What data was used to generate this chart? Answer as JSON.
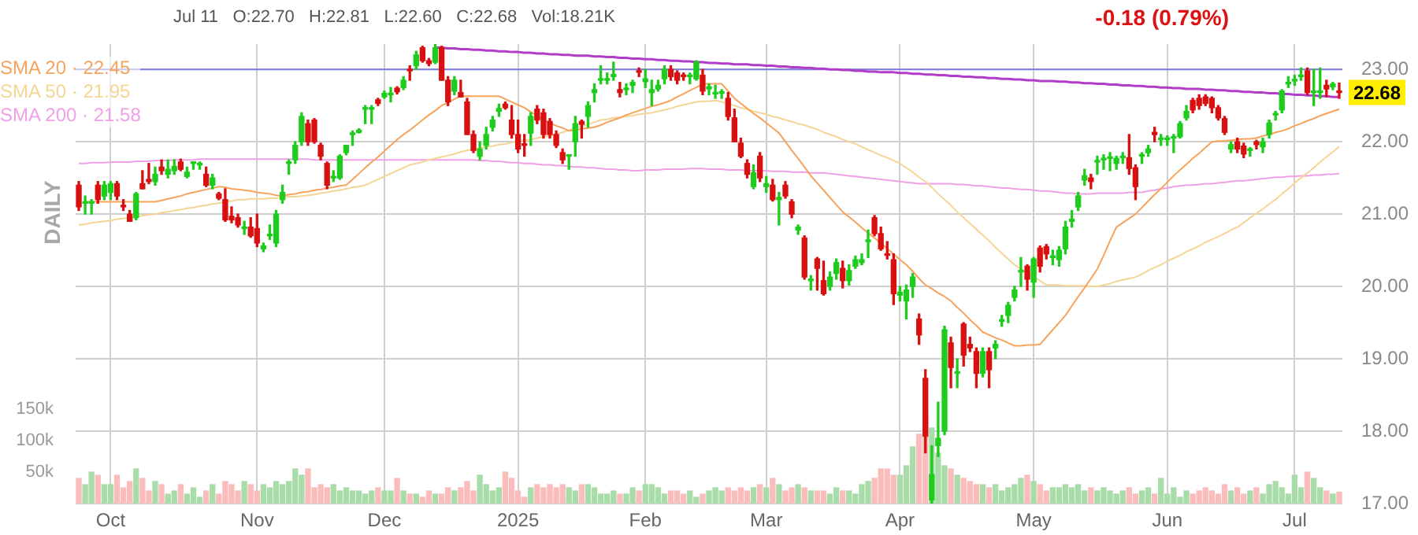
{
  "chart_data": {
    "type": "candlestick",
    "subtitle": "Jul 11   O:22.70   H:22.81   L:22.60   C:22.68   Vol:18.21K",
    "annotations": [
      "-0.18 (0.79%)",
      "22.68",
      "DAILY"
    ],
    "categories": [
      null,
      null,
      null,
      null,
      null,
      "Oct",
      null,
      null,
      null,
      null,
      null,
      null,
      null,
      null,
      null,
      null,
      null,
      null,
      null,
      null,
      null,
      null,
      null,
      null,
      null,
      null,
      null,
      null,
      "Nov",
      null,
      null,
      null,
      null,
      null,
      null,
      null,
      null,
      null,
      null,
      null,
      null,
      null,
      null,
      null,
      null,
      null,
      null,
      null,
      "Dec",
      null,
      null,
      null,
      null,
      null,
      null,
      null,
      null,
      null,
      null,
      null,
      null,
      null,
      null,
      null,
      null,
      null,
      null,
      null,
      null,
      "2025",
      null,
      null,
      null,
      null,
      null,
      null,
      null,
      null,
      null,
      null,
      null,
      null,
      null,
      null,
      null,
      null,
      null,
      null,
      null,
      "Feb",
      null,
      null,
      null,
      null,
      null,
      null,
      null,
      null,
      null,
      null,
      null,
      null,
      null,
      null,
      null,
      null,
      null,
      null,
      "Mar",
      null,
      null,
      null,
      null,
      null,
      null,
      null,
      null,
      null,
      null,
      null,
      null,
      null,
      null,
      null,
      null,
      null,
      null,
      null,
      null,
      "Apr",
      null,
      null,
      null,
      null,
      null,
      null,
      null,
      null,
      null,
      null,
      null,
      null,
      null,
      null,
      null,
      null,
      null,
      null,
      null,
      null,
      "May",
      null,
      null,
      null,
      null,
      null,
      null,
      null,
      null,
      null,
      null,
      null,
      null,
      null,
      null,
      null,
      null,
      null,
      null,
      null,
      null,
      "Jun",
      null,
      null,
      null,
      null,
      null,
      null,
      null,
      null,
      null,
      null,
      null,
      null,
      null,
      null,
      null,
      null,
      null,
      null,
      null,
      "Jul",
      null,
      null,
      null,
      null,
      null,
      null,
      null
    ],
    "ohlc": [
      [
        21.4,
        21.45,
        21.05,
        21.1
      ],
      [
        21.15,
        21.25,
        21.0,
        21.15
      ],
      [
        21.15,
        21.2,
        21.0,
        21.15
      ],
      [
        21.4,
        21.45,
        21.15,
        21.2
      ],
      [
        21.25,
        21.45,
        21.2,
        21.4
      ],
      [
        21.3,
        21.45,
        21.2,
        21.42
      ],
      [
        21.42,
        21.45,
        21.2,
        21.25
      ],
      [
        21.12,
        21.2,
        21.05,
        21.1
      ],
      [
        21.0,
        21.05,
        20.9,
        20.9
      ],
      [
        20.95,
        21.3,
        20.92,
        21.28
      ],
      [
        21.42,
        21.6,
        21.35,
        21.35
      ],
      [
        21.48,
        21.7,
        21.42,
        21.45
      ],
      [
        21.45,
        21.65,
        21.4,
        21.55
      ],
      [
        21.65,
        21.75,
        21.55,
        21.6
      ],
      [
        21.55,
        21.75,
        21.5,
        21.62
      ],
      [
        21.6,
        21.75,
        21.55,
        21.66
      ],
      [
        21.72,
        21.76,
        21.6,
        21.62
      ],
      [
        21.52,
        21.65,
        21.5,
        21.58
      ],
      [
        21.7,
        21.72,
        21.62,
        21.7
      ],
      [
        21.68,
        21.72,
        21.62,
        21.68
      ],
      [
        21.55,
        21.65,
        21.38,
        21.4
      ],
      [
        21.4,
        21.55,
        21.35,
        21.5
      ],
      [
        21.28,
        21.3,
        21.2,
        21.22
      ],
      [
        21.2,
        21.35,
        20.9,
        20.92
      ],
      [
        20.97,
        21.1,
        20.88,
        20.92
      ],
      [
        20.95,
        21.0,
        20.82,
        20.85
      ],
      [
        20.8,
        20.9,
        20.72,
        20.8
      ],
      [
        20.82,
        20.95,
        20.68,
        20.7
      ],
      [
        20.8,
        21.0,
        20.55,
        20.6
      ],
      [
        20.52,
        20.6,
        20.48,
        20.56
      ],
      [
        20.7,
        20.85,
        20.65,
        20.7
      ],
      [
        20.6,
        21.05,
        20.55,
        21.0
      ],
      [
        21.2,
        21.4,
        21.15,
        21.3
      ],
      [
        21.7,
        21.75,
        21.55,
        21.7
      ],
      [
        21.75,
        22.0,
        21.7,
        21.95
      ],
      [
        22.0,
        22.4,
        21.95,
        22.35
      ],
      [
        22.25,
        22.3,
        21.95,
        22.0
      ],
      [
        22.3,
        22.32,
        21.98,
        22.0
      ],
      [
        21.95,
        21.98,
        21.75,
        21.8
      ],
      [
        21.7,
        21.72,
        21.35,
        21.4
      ],
      [
        21.5,
        21.6,
        21.45,
        21.5
      ],
      [
        21.5,
        21.82,
        21.48,
        21.8
      ],
      [
        21.85,
        21.95,
        21.82,
        21.95
      ],
      [
        22.1,
        22.15,
        21.95,
        22.1
      ],
      [
        22.13,
        22.18,
        22.12,
        22.16
      ],
      [
        22.45,
        22.5,
        22.25,
        22.45
      ],
      [
        22.45,
        22.5,
        22.25,
        22.45
      ],
      [
        22.58,
        22.6,
        22.5,
        22.53
      ],
      [
        22.62,
        22.7,
        22.6,
        22.67
      ],
      [
        22.65,
        22.75,
        22.55,
        22.65
      ],
      [
        22.74,
        22.76,
        22.66,
        22.69
      ],
      [
        22.75,
        22.9,
        22.72,
        22.85
      ],
      [
        23.0,
        23.05,
        22.85,
        22.98
      ],
      [
        23.05,
        23.25,
        23.0,
        23.2
      ],
      [
        23.3,
        23.32,
        23.1,
        23.12
      ],
      [
        23.12,
        23.15,
        23.05,
        23.08
      ],
      [
        23.1,
        23.35,
        23.08,
        23.3
      ],
      [
        23.3,
        23.32,
        22.85,
        22.85
      ],
      [
        22.85,
        22.9,
        22.5,
        22.55
      ],
      [
        22.7,
        22.9,
        22.65,
        22.85
      ],
      [
        22.68,
        22.85,
        22.62,
        22.62
      ],
      [
        22.55,
        22.6,
        22.1,
        22.1
      ],
      [
        22.1,
        22.15,
        21.85,
        21.88
      ],
      [
        21.8,
        22.0,
        21.75,
        21.9
      ],
      [
        21.95,
        22.2,
        21.9,
        22.1
      ],
      [
        22.2,
        22.35,
        22.15,
        22.3
      ],
      [
        22.42,
        22.52,
        22.35,
        22.46
      ],
      [
        22.52,
        22.55,
        22.45,
        22.47
      ],
      [
        22.3,
        22.5,
        22.05,
        22.1
      ],
      [
        22.1,
        22.3,
        21.85,
        21.9
      ],
      [
        21.97,
        22.1,
        21.8,
        21.95
      ],
      [
        22.12,
        22.4,
        21.95,
        22.35
      ],
      [
        22.45,
        22.5,
        22.25,
        22.3
      ],
      [
        22.4,
        22.45,
        22.05,
        22.1
      ],
      [
        22.28,
        22.32,
        22.05,
        22.1
      ],
      [
        22.1,
        22.15,
        21.92,
        21.95
      ],
      [
        21.85,
        21.9,
        21.7,
        21.75
      ],
      [
        21.8,
        21.82,
        21.62,
        21.8
      ],
      [
        22.0,
        22.35,
        21.8,
        22.25
      ],
      [
        22.28,
        22.3,
        22.05,
        22.24
      ],
      [
        22.35,
        22.55,
        22.2,
        22.5
      ],
      [
        22.68,
        22.8,
        22.55,
        22.72
      ],
      [
        22.85,
        23.05,
        22.8,
        22.85
      ],
      [
        22.85,
        22.95,
        22.8,
        22.85
      ],
      [
        22.9,
        23.1,
        22.85,
        22.93
      ],
      [
        22.72,
        22.82,
        22.62,
        22.68
      ],
      [
        22.72,
        22.8,
        22.65,
        22.72
      ],
      [
        22.78,
        22.85,
        22.68,
        22.82
      ],
      [
        22.98,
        23.02,
        22.9,
        22.96
      ],
      [
        22.83,
        23.0,
        22.75,
        22.87
      ],
      [
        22.68,
        22.85,
        22.5,
        22.72
      ],
      [
        22.73,
        22.85,
        22.7,
        22.78
      ],
      [
        22.87,
        23.05,
        22.8,
        23.0
      ],
      [
        23.0,
        23.05,
        22.85,
        22.9
      ],
      [
        22.95,
        22.98,
        22.8,
        22.85
      ],
      [
        22.92,
        22.95,
        22.85,
        22.9
      ],
      [
        22.9,
        22.95,
        22.8,
        22.9
      ],
      [
        22.87,
        23.12,
        22.85,
        23.1
      ],
      [
        22.92,
        23.0,
        22.65,
        22.7
      ],
      [
        22.73,
        22.8,
        22.65,
        22.76
      ],
      [
        22.66,
        22.78,
        22.6,
        22.66
      ],
      [
        22.67,
        22.72,
        22.6,
        22.67
      ],
      [
        22.6,
        22.68,
        22.3,
        22.35
      ],
      [
        22.33,
        22.45,
        22.0,
        22.0
      ],
      [
        21.98,
        22.05,
        21.78,
        21.8
      ],
      [
        21.7,
        21.75,
        21.5,
        21.55
      ],
      [
        21.38,
        21.68,
        21.35,
        21.57
      ],
      [
        21.8,
        21.85,
        21.45,
        21.5
      ],
      [
        21.38,
        21.52,
        21.3,
        21.42
      ],
      [
        21.4,
        21.48,
        21.18,
        21.2
      ],
      [
        21.2,
        21.3,
        20.85,
        21.23
      ],
      [
        21.4,
        21.45,
        21.22,
        21.25
      ],
      [
        21.17,
        21.2,
        20.95,
        21.0
      ],
      [
        20.78,
        20.85,
        20.72,
        20.82
      ],
      [
        20.67,
        20.7,
        20.1,
        20.13
      ],
      [
        20.08,
        20.15,
        19.95,
        20.1
      ],
      [
        20.38,
        20.4,
        19.95,
        20.25
      ],
      [
        20.08,
        20.35,
        19.88,
        19.9
      ],
      [
        20.0,
        20.2,
        19.95,
        20.13
      ],
      [
        20.18,
        20.38,
        20.1,
        20.33
      ],
      [
        20.25,
        20.35,
        19.98,
        20.08
      ],
      [
        20.08,
        20.3,
        20.02,
        20.22
      ],
      [
        20.28,
        20.42,
        20.25,
        20.37
      ],
      [
        20.33,
        20.45,
        20.3,
        20.37
      ],
      [
        20.62,
        20.78,
        20.4,
        20.62
      ],
      [
        20.95,
        20.98,
        20.7,
        20.73
      ],
      [
        20.73,
        20.82,
        20.5,
        20.52
      ],
      [
        20.45,
        20.62,
        20.38,
        20.43
      ],
      [
        20.37,
        20.45,
        19.75,
        19.9
      ],
      [
        19.88,
        20.0,
        19.8,
        19.92
      ],
      [
        19.8,
        20.02,
        19.55,
        19.95
      ],
      [
        20.0,
        20.18,
        19.85,
        20.13
      ],
      [
        19.55,
        19.62,
        19.2,
        19.33
      ],
      [
        18.73,
        18.85,
        17.7,
        17.93
      ],
      [
        17.05,
        17.8,
        17.0,
        17.4
      ],
      [
        17.8,
        18.4,
        17.65,
        17.9
      ],
      [
        18.0,
        19.45,
        17.95,
        19.4
      ],
      [
        19.22,
        19.3,
        18.6,
        18.88
      ],
      [
        18.8,
        19.0,
        18.6,
        18.8
      ],
      [
        19.48,
        19.5,
        18.9,
        19.05
      ],
      [
        19.2,
        19.3,
        19.1,
        19.15
      ],
      [
        19.1,
        19.15,
        18.6,
        18.8
      ],
      [
        18.8,
        19.15,
        18.75,
        19.1
      ],
      [
        19.1,
        19.15,
        18.6,
        18.85
      ],
      [
        19.15,
        19.25,
        19.0,
        19.2
      ],
      [
        19.52,
        19.6,
        19.45,
        19.52
      ],
      [
        19.6,
        19.78,
        19.5,
        19.74
      ],
      [
        19.85,
        20.0,
        19.8,
        19.95
      ],
      [
        20.2,
        20.4,
        20.0,
        20.2
      ],
      [
        20.28,
        20.3,
        19.95,
        20.1
      ],
      [
        20.06,
        20.4,
        19.85,
        20.38
      ],
      [
        20.53,
        20.56,
        20.2,
        20.28
      ],
      [
        20.55,
        20.58,
        20.38,
        20.45
      ],
      [
        20.4,
        20.5,
        20.3,
        20.4
      ],
      [
        20.37,
        20.55,
        20.28,
        20.5
      ],
      [
        20.52,
        20.9,
        20.45,
        20.82
      ],
      [
        20.9,
        21.05,
        20.82,
        20.93
      ],
      [
        21.1,
        21.3,
        21.05,
        21.25
      ],
      [
        21.47,
        21.62,
        21.4,
        21.53
      ],
      [
        21.5,
        21.55,
        21.35,
        21.45
      ],
      [
        21.72,
        21.8,
        21.55,
        21.72
      ],
      [
        21.75,
        21.82,
        21.62,
        21.75
      ],
      [
        21.77,
        21.85,
        21.6,
        21.77
      ],
      [
        21.7,
        21.8,
        21.62,
        21.77
      ],
      [
        21.78,
        21.85,
        21.7,
        21.78
      ],
      [
        21.78,
        22.1,
        21.55,
        21.63
      ],
      [
        21.64,
        21.68,
        21.2,
        21.38
      ],
      [
        21.8,
        21.85,
        21.7,
        21.8
      ],
      [
        21.85,
        21.95,
        21.8,
        21.9
      ],
      [
        22.13,
        22.2,
        22.0,
        22.1
      ],
      [
        22.03,
        22.1,
        21.95,
        22.03
      ],
      [
        22.03,
        22.08,
        21.95,
        22.03
      ],
      [
        22.05,
        22.1,
        21.85,
        22.05
      ],
      [
        22.07,
        22.28,
        22.05,
        22.25
      ],
      [
        22.33,
        22.5,
        22.3,
        22.42
      ],
      [
        22.57,
        22.6,
        22.4,
        22.44
      ],
      [
        22.6,
        22.65,
        22.45,
        22.5
      ],
      [
        22.62,
        22.65,
        22.5,
        22.53
      ],
      [
        22.6,
        22.62,
        22.4,
        22.47
      ],
      [
        22.47,
        22.5,
        22.3,
        22.33
      ],
      [
        22.32,
        22.35,
        22.1,
        22.13
      ],
      [
        21.9,
        22.0,
        21.85,
        21.96
      ],
      [
        22.0,
        22.05,
        21.85,
        21.9
      ],
      [
        21.94,
        21.98,
        21.78,
        21.83
      ],
      [
        21.88,
        21.92,
        21.8,
        21.88
      ],
      [
        22.0,
        22.02,
        21.9,
        21.96
      ],
      [
        21.93,
        22.05,
        21.85,
        22.0
      ],
      [
        22.1,
        22.3,
        22.05,
        22.26
      ],
      [
        22.37,
        22.42,
        22.3,
        22.37
      ],
      [
        22.44,
        22.72,
        22.4,
        22.7
      ],
      [
        22.8,
        22.9,
        22.75,
        22.8
      ],
      [
        22.84,
        22.92,
        22.78,
        22.84
      ],
      [
        22.9,
        23.02,
        22.85,
        22.9
      ],
      [
        22.98,
        23.02,
        22.65,
        22.68
      ],
      [
        22.68,
        23.0,
        22.5,
        22.68
      ],
      [
        22.68,
        23.02,
        22.6,
        22.68
      ],
      [
        22.78,
        22.85,
        22.62,
        22.73
      ],
      [
        22.76,
        22.82,
        22.72,
        22.8
      ],
      [
        22.7,
        22.81,
        22.6,
        22.68
      ]
    ],
    "series": [
      {
        "type": "bar",
        "axis": "y2",
        "values": [
          40000,
          30000,
          50000,
          45000,
          30000,
          30000,
          45000,
          25000,
          35000,
          55000,
          40000,
          20000,
          35000,
          30000,
          15000,
          20000,
          30000,
          15000,
          25000,
          10000,
          20000,
          30000,
          15000,
          35000,
          30000,
          20000,
          35000,
          30000,
          20000,
          30000,
          25000,
          35000,
          30000,
          35000,
          55000,
          45000,
          55000,
          25000,
          30000,
          25000,
          30000,
          20000,
          25000,
          20000,
          20000,
          15000,
          20000,
          25000,
          20000,
          20000,
          40000,
          20000,
          15000,
          15000,
          10000,
          20000,
          15000,
          15000,
          25000,
          20000,
          25000,
          35000,
          20000,
          45000,
          30000,
          20000,
          25000,
          50000,
          40000,
          20000,
          10000,
          25000,
          30000,
          25000,
          30000,
          25000,
          30000,
          25000,
          20000,
          30000,
          30000,
          25000,
          15000,
          15000,
          20000,
          15000,
          15000,
          25000,
          20000,
          30000,
          30000,
          25000,
          15000,
          20000,
          20000,
          15000,
          20000,
          10000,
          15000,
          20000,
          25000,
          20000,
          25000,
          20000,
          25000,
          20000,
          25000,
          30000,
          25000,
          40000,
          30000,
          20000,
          25000,
          30000,
          25000,
          20000,
          20000,
          20000,
          15000,
          25000,
          20000,
          20000,
          15000,
          30000,
          35000,
          40000,
          55000,
          55000,
          45000,
          45000,
          60000,
          90000,
          110000,
          140000,
          120000,
          80000,
          60000,
          55000,
          45000,
          40000,
          35000,
          30000,
          30000,
          25000,
          30000,
          20000,
          25000,
          30000,
          40000,
          45000,
          35000,
          30000,
          20000,
          25000,
          25000,
          30000,
          25000,
          30000,
          20000,
          25000,
          20000,
          25000,
          20000,
          15000,
          20000,
          25000,
          15000,
          20000,
          25000,
          15000,
          40000,
          15000,
          25000,
          10000,
          20000,
          15000,
          20000,
          25000,
          20000,
          15000,
          30000,
          20000,
          25000,
          15000,
          20000,
          25000,
          15000,
          30000,
          35000,
          25000,
          15000,
          45000,
          25000,
          50000,
          40000,
          25000,
          20000,
          15000,
          18000
        ],
        "colors": [
          "#fbbcbc",
          "#a8dca8",
          "#a8dca8",
          "#fbbcbc",
          "#a8dca8",
          "#a8dca8",
          "#fbbcbc",
          "#fbbcbc",
          "#fbbcbc",
          "#a8dca8",
          "#fbbcbc",
          "#fbbcbc",
          "#a8dca8",
          "#fbbcbc",
          "#a8dca8",
          "#a8dca8",
          "#fbbcbc",
          "#a8dca8",
          "#a8dca8",
          "#a8dca8",
          "#fbbcbc",
          "#a8dca8",
          "#fbbcbc",
          "#fbbcbc",
          "#fbbcbc",
          "#fbbcbc",
          "#a8dca8",
          "#fbbcbc",
          "#fbbcbc",
          "#a8dca8",
          "#a8dca8",
          "#a8dca8",
          "#a8dca8",
          "#a8dca8",
          "#a8dca8",
          "#a8dca8",
          "#fbbcbc",
          "#fbbcbc",
          "#fbbcbc",
          "#fbbcbc",
          "#a8dca8",
          "#a8dca8",
          "#a8dca8",
          "#a8dca8",
          "#a8dca8",
          "#a8dca8",
          "#a8dca8",
          "#fbbcbc",
          "#a8dca8",
          "#a8dca8",
          "#fbbcbc",
          "#a8dca8",
          "#fbbcbc",
          "#a8dca8",
          "#fbbcbc",
          "#fbbcbc",
          "#a8dca8",
          "#fbbcbc",
          "#fbbcbc",
          "#a8dca8",
          "#fbbcbc",
          "#fbbcbc",
          "#fbbcbc",
          "#a8dca8",
          "#a8dca8",
          "#a8dca8",
          "#a8dca8",
          "#fbbcbc",
          "#fbbcbc",
          "#fbbcbc",
          "#fbbcbc",
          "#a8dca8",
          "#fbbcbc",
          "#fbbcbc",
          "#fbbcbc",
          "#fbbcbc",
          "#fbbcbc",
          "#a8dca8",
          "#a8dca8",
          "#fbbcbc",
          "#a8dca8",
          "#a8dca8",
          "#a8dca8",
          "#a8dca8",
          "#a8dca8",
          "#fbbcbc",
          "#a8dca8",
          "#a8dca8",
          "#fbbcbc",
          "#a8dca8",
          "#a8dca8",
          "#a8dca8",
          "#a8dca8",
          "#fbbcbc",
          "#fbbcbc",
          "#fbbcbc",
          "#a8dca8",
          "#a8dca8",
          "#fbbcbc",
          "#a8dca8",
          "#a8dca8",
          "#a8dca8",
          "#fbbcbc",
          "#fbbcbc",
          "#fbbcbc",
          "#fbbcbc",
          "#a8dca8",
          "#fbbcbc",
          "#a8dca8",
          "#fbbcbc",
          "#a8dca8",
          "#fbbcbc",
          "#fbbcbc",
          "#a8dca8",
          "#fbbcbc",
          "#a8dca8",
          "#fbbcbc",
          "#fbbcbc",
          "#a8dca8",
          "#a8dca8",
          "#fbbcbc",
          "#a8dca8",
          "#a8dca8",
          "#a8dca8",
          "#a8dca8",
          "#fbbcbc",
          "#fbbcbc",
          "#fbbcbc",
          "#fbbcbc",
          "#a8dca8",
          "#a8dca8",
          "#a8dca8",
          "#fbbcbc",
          "#fbbcbc",
          "#a8dca8",
          "#a8dca8",
          "#a8dca8",
          "#fbbcbc",
          "#a8dca8",
          "#fbbcbc",
          "#fbbcbc",
          "#fbbcbc",
          "#a8dca8",
          "#fbbcbc",
          "#a8dca8",
          "#a8dca8",
          "#a8dca8",
          "#a8dca8",
          "#a8dca8",
          "#fbbcbc",
          "#a8dca8",
          "#fbbcbc",
          "#fbbcbc",
          "#a8dca8",
          "#a8dca8",
          "#a8dca8",
          "#a8dca8",
          "#a8dca8",
          "#a8dca8",
          "#fbbcbc",
          "#a8dca8",
          "#a8dca8",
          "#a8dca8",
          "#a8dca8",
          "#a8dca8",
          "#fbbcbc",
          "#fbbcbc",
          "#a8dca8",
          "#a8dca8",
          "#fbbcbc",
          "#a8dca8",
          "#a8dca8",
          "#a8dca8",
          "#a8dca8",
          "#a8dca8",
          "#fbbcbc",
          "#fbbcbc",
          "#fbbcbc",
          "#fbbcbc",
          "#fbbcbc",
          "#fbbcbc",
          "#a8dca8",
          "#fbbcbc",
          "#fbbcbc",
          "#a8dca8",
          "#fbbcbc",
          "#a8dca8",
          "#a8dca8",
          "#a8dca8",
          "#a8dca8",
          "#a8dca8",
          "#a8dca8",
          "#a8dca8",
          "#fbbcbc",
          "#a8dca8",
          "#a8dca8",
          "#fbbcbc",
          "#a8dca8",
          "#fbbcbc"
        ]
      },
      {
        "type": "line",
        "name": "SMA 20 · 22.45",
        "color": "#f7a35c",
        "values": [
          null,
          21.17,
          21.17,
          21.17,
          21.17,
          21.17,
          21.17,
          21.17,
          21.17,
          21.17,
          21.17,
          21.17,
          21.17,
          21.19,
          21.21,
          21.23,
          21.25,
          21.28,
          21.3,
          21.32,
          21.34,
          21.36,
          21.38,
          21.37,
          21.35,
          21.34,
          21.33,
          21.32,
          21.3,
          21.29,
          21.28,
          21.26,
          21.25,
          21.27,
          21.28,
          21.3,
          21.31,
          21.33,
          21.34,
          21.36,
          21.37,
          21.39,
          21.4,
          21.48,
          21.56,
          21.64,
          21.72,
          21.79,
          21.87,
          21.95,
          22.03,
          22.1,
          22.16,
          22.23,
          22.3,
          22.37,
          22.43,
          22.5,
          22.54,
          22.59,
          22.63,
          22.63,
          22.63,
          22.63,
          22.63,
          22.63,
          22.63,
          22.59,
          22.55,
          22.51,
          22.47,
          22.41,
          22.36,
          22.3,
          22.26,
          22.22,
          22.19,
          22.15,
          22.16,
          22.18,
          22.19,
          22.2,
          22.23,
          22.27,
          22.3,
          22.33,
          22.37,
          22.4,
          22.43,
          22.46,
          22.49,
          22.51,
          22.54,
          22.57,
          22.62,
          22.66,
          22.71,
          22.75,
          22.8,
          22.8,
          22.8,
          22.8,
          22.7,
          22.6,
          22.53,
          22.46,
          22.39,
          22.33,
          22.26,
          22.19,
          22.12,
          22.0,
          21.88,
          21.77,
          21.65,
          21.53,
          21.43,
          21.33,
          21.23,
          21.13,
          21.03,
          20.96,
          20.89,
          20.81,
          20.74,
          20.67,
          20.6,
          20.52,
          20.45,
          20.37,
          20.3,
          20.21,
          20.11,
          20.02,
          19.97,
          19.91,
          19.86,
          19.8,
          19.71,
          19.63,
          19.54,
          19.46,
          19.37,
          19.33,
          19.29,
          19.26,
          19.22,
          19.18,
          19.18,
          19.19,
          19.19,
          19.2,
          19.3,
          19.4,
          19.5,
          19.6,
          19.73,
          19.86,
          19.98,
          20.11,
          20.24,
          20.43,
          20.63,
          20.82,
          20.88,
          20.94,
          21.0,
          21.09,
          21.18,
          21.27,
          21.35,
          21.44,
          21.53,
          21.61,
          21.69,
          21.77,
          21.84,
          21.92,
          22.0,
          22.01,
          22.01,
          22.02,
          22.03,
          22.04,
          22.04,
          22.05,
          22.08,
          22.1,
          22.13,
          22.15,
          22.18,
          22.22,
          22.25,
          22.29,
          22.32,
          22.36,
          22.39,
          22.42,
          22.45
        ]
      },
      {
        "type": "line",
        "name": "SMA 50 · 21.95",
        "color": "#f5d596",
        "values": [
          20.85,
          20.86,
          20.88,
          20.89,
          20.9,
          20.91,
          20.93,
          20.94,
          20.95,
          20.96,
          20.98,
          20.99,
          21.0,
          21.02,
          21.03,
          21.05,
          21.06,
          21.08,
          21.09,
          21.11,
          21.12,
          21.14,
          21.15,
          21.17,
          21.18,
          21.2,
          21.2,
          21.21,
          21.21,
          21.21,
          21.22,
          21.22,
          21.23,
          21.24,
          21.24,
          21.25,
          21.26,
          21.27,
          21.29,
          21.3,
          21.32,
          21.33,
          21.35,
          21.37,
          21.38,
          21.4,
          21.44,
          21.48,
          21.52,
          21.56,
          21.6,
          21.64,
          21.68,
          21.7,
          21.72,
          21.75,
          21.77,
          21.79,
          21.81,
          21.83,
          21.86,
          21.88,
          21.9,
          21.91,
          21.93,
          21.94,
          21.96,
          21.97,
          21.99,
          22.0,
          22.02,
          22.03,
          22.05,
          22.07,
          22.08,
          22.1,
          22.13,
          22.16,
          22.19,
          22.21,
          22.24,
          22.27,
          22.3,
          22.31,
          22.33,
          22.34,
          22.35,
          22.36,
          22.38,
          22.39,
          22.4,
          22.42,
          22.44,
          22.46,
          22.49,
          22.51,
          22.53,
          22.55,
          22.56,
          22.56,
          22.57,
          22.55,
          22.52,
          22.5,
          22.47,
          22.45,
          22.42,
          22.4,
          22.38,
          22.35,
          22.33,
          22.3,
          22.28,
          22.25,
          22.23,
          22.2,
          22.17,
          22.13,
          22.1,
          22.07,
          22.03,
          22.0,
          21.97,
          21.93,
          21.89,
          21.85,
          21.81,
          21.78,
          21.74,
          21.7,
          21.64,
          21.58,
          21.51,
          21.45,
          21.37,
          21.28,
          21.2,
          21.12,
          21.03,
          20.95,
          20.87,
          20.79,
          20.71,
          20.63,
          20.54,
          20.46,
          20.38,
          20.3,
          20.24,
          20.19,
          20.13,
          20.08,
          20.02,
          20.02,
          20.02,
          20.01,
          20.01,
          20.01,
          20.01,
          20.0,
          20.0,
          20.02,
          20.04,
          20.07,
          20.09,
          20.11,
          20.13,
          20.17,
          20.22,
          20.26,
          20.3,
          20.35,
          20.39,
          20.43,
          20.48,
          20.52,
          20.56,
          20.61,
          20.65,
          20.69,
          20.73,
          20.78,
          20.82,
          20.88,
          20.95,
          21.01,
          21.07,
          21.14,
          21.2,
          21.28,
          21.35,
          21.43,
          21.5,
          21.57,
          21.64,
          21.72,
          21.79,
          21.86,
          21.93
        ]
      },
      {
        "type": "line",
        "name": "SMA 200 · 21.58",
        "color": "#f0a0e6",
        "values": [
          21.7,
          21.7,
          21.71,
          21.71,
          21.71,
          21.72,
          21.72,
          21.72,
          21.72,
          21.73,
          21.73,
          21.73,
          21.74,
          21.74,
          21.74,
          21.75,
          21.75,
          21.75,
          21.75,
          21.76,
          21.76,
          21.76,
          21.76,
          21.76,
          21.76,
          21.76,
          21.76,
          21.76,
          21.76,
          21.76,
          21.76,
          21.76,
          21.76,
          21.76,
          21.76,
          21.76,
          21.76,
          21.75,
          21.75,
          21.75,
          21.75,
          21.75,
          21.75,
          21.75,
          21.75,
          21.75,
          21.75,
          21.75,
          21.75,
          21.75,
          21.75,
          21.75,
          21.75,
          21.75,
          21.75,
          21.75,
          21.75,
          21.75,
          21.75,
          21.75,
          21.75,
          21.75,
          21.75,
          21.74,
          21.74,
          21.73,
          21.73,
          21.72,
          21.71,
          21.71,
          21.7,
          21.7,
          21.69,
          21.68,
          21.68,
          21.67,
          21.67,
          21.66,
          21.65,
          21.65,
          21.64,
          21.64,
          21.63,
          21.62,
          21.62,
          21.61,
          21.61,
          21.6,
          21.6,
          21.61,
          21.61,
          21.61,
          21.62,
          21.62,
          21.62,
          21.62,
          21.63,
          21.63,
          21.63,
          21.62,
          21.62,
          21.62,
          21.61,
          21.61,
          21.61,
          21.6,
          21.6,
          21.6,
          21.6,
          21.59,
          21.59,
          21.59,
          21.58,
          21.58,
          21.58,
          21.57,
          21.57,
          21.57,
          21.56,
          21.55,
          21.54,
          21.53,
          21.52,
          21.51,
          21.5,
          21.49,
          21.48,
          21.47,
          21.46,
          21.45,
          21.44,
          21.43,
          21.42,
          21.42,
          21.42,
          21.42,
          21.42,
          21.42,
          21.41,
          21.41,
          21.4,
          21.39,
          21.39,
          21.38,
          21.37,
          21.36,
          21.36,
          21.35,
          21.34,
          21.34,
          21.33,
          21.32,
          21.32,
          21.31,
          21.3,
          21.29,
          21.29,
          21.28,
          21.28,
          21.28,
          21.29,
          21.29,
          21.29,
          21.29,
          21.29,
          21.3,
          21.3,
          21.3,
          21.32,
          21.33,
          21.35,
          21.36,
          21.38,
          21.39,
          21.4,
          21.4,
          21.41,
          21.42,
          21.42,
          21.43,
          21.44,
          21.45,
          21.46,
          21.46,
          21.47,
          21.48,
          21.49,
          21.5,
          21.51,
          21.51,
          21.52,
          21.52,
          21.53,
          21.53,
          21.54,
          21.54,
          21.55,
          21.55,
          21.56
        ]
      },
      {
        "type": "line",
        "color": "#b03cc8",
        "values": [
          null,
          null,
          null,
          null,
          null,
          null,
          null,
          null,
          null,
          null,
          null,
          null,
          null,
          null,
          null,
          null,
          null,
          null,
          null,
          null,
          null,
          null,
          null,
          null,
          null,
          null,
          null,
          null,
          null,
          null,
          null,
          null,
          null,
          null,
          null,
          null,
          null,
          null,
          null,
          null,
          null,
          null,
          null,
          null,
          null,
          null,
          null,
          null,
          null,
          null,
          null,
          null,
          null,
          null,
          null,
          null,
          23.3,
          23.3,
          23.29,
          23.29,
          23.28,
          23.28,
          23.27,
          23.27,
          23.26,
          23.26,
          23.25,
          23.25,
          23.24,
          23.24,
          23.23,
          23.23,
          23.22,
          23.22,
          23.21,
          23.21,
          23.2,
          23.2,
          23.19,
          23.19,
          23.19,
          23.18,
          23.18,
          23.17,
          23.17,
          23.16,
          23.16,
          23.15,
          23.15,
          23.14,
          23.14,
          23.13,
          23.13,
          23.12,
          23.12,
          23.11,
          23.11,
          23.1,
          23.1,
          23.09,
          23.09,
          23.08,
          23.08,
          23.07,
          23.07,
          23.07,
          23.06,
          23.06,
          23.05,
          23.05,
          23.04,
          23.04,
          23.03,
          23.03,
          23.02,
          23.02,
          23.01,
          23.01,
          23.0,
          23.0,
          22.99,
          22.99,
          22.98,
          22.98,
          22.97,
          22.97,
          22.96,
          22.96,
          22.96,
          22.95,
          22.95,
          22.94,
          22.94,
          22.93,
          22.93,
          22.92,
          22.92,
          22.91,
          22.91,
          22.9,
          22.9,
          22.89,
          22.89,
          22.88,
          22.88,
          22.87,
          22.87,
          22.86,
          22.86,
          22.85,
          22.85,
          22.84,
          22.84,
          22.84,
          22.83,
          22.83,
          22.82,
          22.82,
          22.81,
          22.81,
          22.8,
          22.8,
          22.79,
          22.79,
          22.78,
          22.78,
          22.77,
          22.77,
          22.76,
          22.76,
          22.75,
          22.75,
          22.74,
          22.74,
          22.73,
          22.73,
          22.73,
          22.72,
          22.72,
          22.71,
          22.71,
          22.7,
          22.7,
          22.69,
          22.69,
          22.68,
          22.68,
          22.67,
          22.67,
          22.66,
          22.66,
          22.65,
          22.65,
          22.64,
          22.64,
          22.63,
          22.63,
          22.62,
          22.62
        ]
      }
    ],
    "ref_lines": [
      {
        "axis": "y",
        "value": 23,
        "color": "#7b7be0"
      }
    ],
    "ylim": [
      17,
      23.35
    ],
    "yticks": [
      {
        "value": 17,
        "label": "17.00"
      },
      {
        "value": 18,
        "label": "18.00"
      },
      {
        "value": 19,
        "label": "19.00"
      },
      {
        "value": 20,
        "label": "20.00"
      },
      {
        "value": 21,
        "label": "21.00"
      },
      {
        "value": 22,
        "label": "22.00"
      },
      {
        "value": 23,
        "label": "23.00"
      }
    ],
    "y2lim": [
      0,
      730000
    ],
    "y2ticks": [
      {
        "value": 50000,
        "label": "50k"
      },
      {
        "value": 100000,
        "label": "100k"
      },
      {
        "value": 150000,
        "label": "150k"
      }
    ],
    "grid": true,
    "legend": "top left"
  }
}
